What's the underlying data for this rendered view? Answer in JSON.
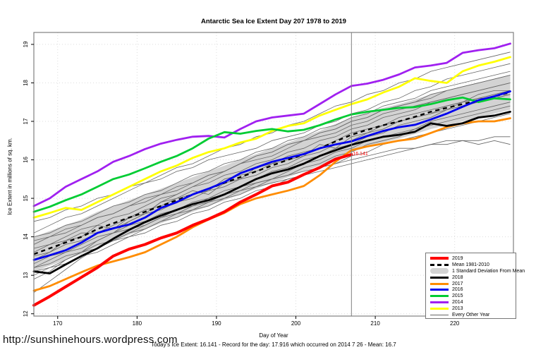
{
  "footer": {
    "url": "http://sunshinehours.wordpress.com",
    "stats": "Today's Ice Extent: 16.141  - Record for the day: 17.916 which occurred on 2014 7 26  - Mean: 16.7"
  },
  "legend": [
    {
      "label": "2019",
      "color": "#ff0000",
      "style": "thick"
    },
    {
      "label": "Mean 1981-2010",
      "color": "#000000",
      "style": "dashed"
    },
    {
      "label": "1 Standard Deviation From Mean",
      "color": "#d3d3d3",
      "style": "band"
    },
    {
      "label": "2018",
      "color": "#000000",
      "style": "medium"
    },
    {
      "label": "2017",
      "color": "#ff8c00",
      "style": "medium"
    },
    {
      "label": "2016",
      "color": "#0000ee",
      "style": "medium"
    },
    {
      "label": "2015",
      "color": "#00cc33",
      "style": "medium"
    },
    {
      "label": "2014",
      "color": "#a020f0",
      "style": "medium"
    },
    {
      "label": "2013",
      "color": "#ffff00",
      "style": "medium"
    },
    {
      "label": "Every Other Year",
      "color": "#666666",
      "style": "thin"
    }
  ],
  "chart_data": {
    "type": "line",
    "title": "Antarctic Sea Ice Extent Day 207 1978 to 2019",
    "xlabel": "Day of Year",
    "ylabel": "Ice Extent in millions of sq. km.",
    "xlim": [
      167,
      227.4
    ],
    "ylim": [
      11.94,
      19.31
    ],
    "x_ticks": [
      170,
      180,
      190,
      200,
      210,
      220
    ],
    "y_ticks": [
      12,
      13,
      14,
      15,
      16,
      17,
      18,
      19
    ],
    "grid": "dotted",
    "vline": {
      "x": 207,
      "color": "#808080"
    },
    "annotation": {
      "text": "16.141",
      "x": 207,
      "y": 16.141,
      "color": "#ff0000"
    },
    "x": [
      167,
      169,
      171,
      173,
      175,
      177,
      179,
      181,
      183,
      185,
      187,
      189,
      191,
      193,
      195,
      197,
      199,
      201,
      203,
      205,
      207,
      209,
      211,
      213,
      215,
      217,
      219,
      221,
      223,
      225,
      227
    ],
    "band": {
      "name": "1 Standard Deviation From Mean",
      "color": "#d3d3d3",
      "upper": [
        14.0,
        14.15,
        14.3,
        14.45,
        14.65,
        14.8,
        14.95,
        15.1,
        15.25,
        15.4,
        15.55,
        15.7,
        15.85,
        16.0,
        16.15,
        16.3,
        16.45,
        16.6,
        16.75,
        16.93,
        17.1,
        17.23,
        17.35,
        17.45,
        17.57,
        17.7,
        17.8,
        17.9,
        18.0,
        18.1,
        18.2
      ],
      "lower": [
        13.1,
        13.25,
        13.4,
        13.55,
        13.75,
        13.9,
        14.05,
        14.2,
        14.35,
        14.5,
        14.65,
        14.8,
        14.95,
        15.1,
        15.25,
        15.4,
        15.55,
        15.7,
        15.85,
        16.03,
        16.2,
        16.33,
        16.45,
        16.55,
        16.67,
        16.8,
        16.9,
        17.0,
        17.1,
        17.2,
        17.3
      ]
    },
    "mean": {
      "name": "Mean 1981-2010",
      "color": "#000000",
      "dashed": true,
      "values": [
        13.55,
        13.7,
        13.85,
        14.0,
        14.2,
        14.35,
        14.5,
        14.65,
        14.8,
        14.95,
        15.1,
        15.25,
        15.4,
        15.55,
        15.7,
        15.85,
        16.0,
        16.15,
        16.3,
        16.48,
        16.65,
        16.78,
        16.9,
        17.0,
        17.12,
        17.25,
        17.35,
        17.45,
        17.55,
        17.65,
        17.75
      ]
    },
    "series": [
      {
        "name": "2013",
        "color": "#ffff00",
        "width": 2.8,
        "values": [
          14.5,
          14.62,
          14.75,
          14.7,
          14.9,
          15.1,
          15.3,
          15.5,
          15.7,
          15.85,
          16.05,
          16.2,
          16.3,
          16.45,
          16.55,
          16.75,
          16.88,
          16.95,
          17.15,
          17.3,
          17.45,
          17.57,
          17.75,
          17.9,
          18.12,
          18.05,
          18.0,
          18.3,
          18.45,
          18.55,
          18.67
        ]
      },
      {
        "name": "2014",
        "color": "#a020f0",
        "width": 2.8,
        "values": [
          14.8,
          15.0,
          15.3,
          15.5,
          15.7,
          15.95,
          16.1,
          16.28,
          16.42,
          16.52,
          16.6,
          16.62,
          16.58,
          16.8,
          17.0,
          17.1,
          17.15,
          17.2,
          17.45,
          17.7,
          17.92,
          17.98,
          18.08,
          18.22,
          18.4,
          18.45,
          18.52,
          18.78,
          18.85,
          18.9,
          19.02
        ]
      },
      {
        "name": "2015",
        "color": "#00cc33",
        "width": 2.8,
        "values": [
          14.65,
          14.78,
          14.95,
          15.1,
          15.3,
          15.5,
          15.62,
          15.78,
          15.95,
          16.1,
          16.3,
          16.55,
          16.72,
          16.68,
          16.75,
          16.8,
          16.74,
          16.78,
          16.9,
          17.05,
          17.18,
          17.25,
          17.3,
          17.35,
          17.37,
          17.45,
          17.55,
          17.62,
          17.5,
          17.6,
          17.57
        ]
      },
      {
        "name": "2016",
        "color": "#0000ee",
        "width": 2.8,
        "values": [
          13.4,
          13.52,
          13.65,
          13.85,
          14.1,
          14.22,
          14.32,
          14.5,
          14.75,
          14.9,
          15.1,
          15.25,
          15.42,
          15.65,
          15.8,
          15.95,
          16.05,
          16.15,
          16.3,
          16.4,
          16.48,
          16.62,
          16.75,
          16.85,
          16.91,
          17.05,
          17.2,
          17.38,
          17.55,
          17.65,
          17.78
        ]
      },
      {
        "name": "2017",
        "color": "#ff8c00",
        "width": 2.8,
        "values": [
          12.6,
          12.72,
          12.9,
          13.08,
          13.25,
          13.36,
          13.47,
          13.6,
          13.8,
          14.0,
          14.25,
          14.45,
          14.62,
          14.85,
          15.0,
          15.1,
          15.2,
          15.32,
          15.6,
          15.95,
          16.25,
          16.35,
          16.42,
          16.5,
          16.55,
          16.7,
          16.85,
          16.95,
          17.0,
          17.0,
          17.08
        ]
      },
      {
        "name": "2018",
        "color": "#000000",
        "width": 2.8,
        "values": [
          13.1,
          13.05,
          13.28,
          13.5,
          13.7,
          13.95,
          14.18,
          14.38,
          14.55,
          14.7,
          14.85,
          14.95,
          15.1,
          15.3,
          15.5,
          15.65,
          15.75,
          15.9,
          16.1,
          16.25,
          16.39,
          16.5,
          16.6,
          16.65,
          16.73,
          16.95,
          16.88,
          16.95,
          17.1,
          17.15,
          17.25
        ]
      },
      {
        "name": "2019",
        "color": "#ff0000",
        "width": 4,
        "values": [
          12.22,
          12.45,
          12.7,
          12.95,
          13.2,
          13.5,
          13.68,
          13.8,
          13.97,
          14.1,
          14.3,
          14.46,
          14.65,
          14.9,
          15.1,
          15.32,
          15.42,
          15.62,
          15.8,
          16.02,
          16.141
        ]
      }
    ],
    "other_years": {
      "name": "Every Other Year",
      "color": "#666666",
      "width": 0.8,
      "lines": [
        [
          13.9,
          14.0,
          14.2,
          14.3,
          14.5,
          14.6,
          14.8,
          15.0,
          15.1,
          15.2,
          15.4,
          15.6,
          15.7,
          15.9,
          16.0,
          16.1,
          16.3,
          16.5,
          16.6,
          16.7,
          16.9,
          17.0,
          17.2,
          17.3,
          17.4,
          17.5,
          17.6,
          17.7,
          17.8,
          17.9,
          18.0
        ],
        [
          13.2,
          13.4,
          13.6,
          13.7,
          13.9,
          14.1,
          14.2,
          14.3,
          14.5,
          14.7,
          14.8,
          14.9,
          15.1,
          15.2,
          15.4,
          15.5,
          15.7,
          15.9,
          16.0,
          16.2,
          16.3,
          16.5,
          16.6,
          16.7,
          16.8,
          17.0,
          17.1,
          17.2,
          17.3,
          17.4,
          17.5
        ],
        [
          12.9,
          13.1,
          13.4,
          13.6,
          13.9,
          14.1,
          14.4,
          14.6,
          14.9,
          15.1,
          15.3,
          15.5,
          15.7,
          15.9,
          16.1,
          16.2,
          16.4,
          16.5,
          16.7,
          16.8,
          17.0,
          17.1,
          17.3,
          17.4,
          17.5,
          17.6,
          17.8,
          17.9,
          18.0,
          18.1,
          18.2
        ],
        [
          14.4,
          14.5,
          14.7,
          14.8,
          15.0,
          15.1,
          15.3,
          15.4,
          15.5,
          15.7,
          15.8,
          16.0,
          16.1,
          16.2,
          16.3,
          16.5,
          16.6,
          16.7,
          16.9,
          17.0,
          17.2,
          17.3,
          17.5,
          17.6,
          17.8,
          17.9,
          18.1,
          18.2,
          18.3,
          18.4,
          18.5
        ],
        [
          13.6,
          13.8,
          13.9,
          14.1,
          14.1,
          14.3,
          14.5,
          14.7,
          14.8,
          15.0,
          15.1,
          15.2,
          15.5,
          15.6,
          15.7,
          15.9,
          16.1,
          16.2,
          16.3,
          16.5,
          16.7,
          16.8,
          16.9,
          17.1,
          17.2,
          17.3,
          17.4,
          17.5,
          17.7,
          17.8,
          17.8
        ],
        [
          13.3,
          13.5,
          13.6,
          13.8,
          14.0,
          14.1,
          14.3,
          14.4,
          14.6,
          14.7,
          14.9,
          15.0,
          15.1,
          15.3,
          15.4,
          15.5,
          15.6,
          15.7,
          15.8,
          15.9,
          16.0,
          16.1,
          16.2,
          16.3,
          16.3,
          16.4,
          16.4,
          16.5,
          16.5,
          16.6,
          16.6
        ],
        [
          14.1,
          14.3,
          14.5,
          14.6,
          14.8,
          15.0,
          15.2,
          15.4,
          15.6,
          15.8,
          15.9,
          16.1,
          16.3,
          16.4,
          16.6,
          16.7,
          16.9,
          17.0,
          17.2,
          17.4,
          17.5,
          17.7,
          17.8,
          18.0,
          18.1,
          18.3,
          18.4,
          18.5,
          18.6,
          18.7,
          18.8
        ],
        [
          13.5,
          13.6,
          13.9,
          14.0,
          14.3,
          14.2,
          14.5,
          14.6,
          14.9,
          15.0,
          15.2,
          15.1,
          15.4,
          15.5,
          15.8,
          15.9,
          16.0,
          16.1,
          16.4,
          16.3,
          16.6,
          16.7,
          16.9,
          17.0,
          17.1,
          17.2,
          17.3,
          17.5,
          17.6,
          17.6,
          17.7
        ],
        [
          13.1,
          13.2,
          13.4,
          13.6,
          13.7,
          13.9,
          14.0,
          14.2,
          14.4,
          14.5,
          14.7,
          14.9,
          15.0,
          15.2,
          15.3,
          15.5,
          15.6,
          15.8,
          15.9,
          16.1,
          16.2,
          16.4,
          16.5,
          16.6,
          16.8,
          16.9,
          17.0,
          17.1,
          17.2,
          17.3,
          17.4
        ],
        [
          13.8,
          14.0,
          14.1,
          14.3,
          14.5,
          14.6,
          14.8,
          14.9,
          15.1,
          15.3,
          15.4,
          15.6,
          15.7,
          15.9,
          16.1,
          16.2,
          16.4,
          16.5,
          16.7,
          16.8,
          17.0,
          17.1,
          17.3,
          17.4,
          17.5,
          17.7,
          17.8,
          17.9,
          18.0,
          18.1,
          18.2
        ],
        [
          13.4,
          13.6,
          13.8,
          13.9,
          14.1,
          14.2,
          14.4,
          14.6,
          14.7,
          14.9,
          15.0,
          15.2,
          15.3,
          15.5,
          15.6,
          15.8,
          15.9,
          16.1,
          16.2,
          16.4,
          16.5,
          16.7,
          16.8,
          17.0,
          17.1,
          17.2,
          17.4,
          17.5,
          17.6,
          17.7,
          17.8
        ],
        [
          12.55,
          12.85,
          13.15,
          13.45,
          13.7,
          13.9,
          14.1,
          14.3,
          14.5,
          14.6,
          14.8,
          15.0,
          15.2,
          15.3,
          15.5,
          15.7,
          15.8,
          16.0,
          16.1,
          16.3,
          16.4,
          16.6,
          16.7,
          16.9,
          17.0,
          17.1,
          17.3,
          17.4,
          17.5,
          17.6,
          17.7
        ],
        [
          13.0,
          13.2,
          13.3,
          13.5,
          13.6,
          13.8,
          14.0,
          14.1,
          14.3,
          14.4,
          14.6,
          14.7,
          14.9,
          15.0,
          15.2,
          15.3,
          15.5,
          15.6,
          15.8,
          15.9,
          16.1,
          16.2,
          16.4,
          16.5,
          16.6,
          16.7,
          16.8,
          16.9,
          17.0,
          17.1,
          17.2
        ],
        [
          14.0,
          14.1,
          14.3,
          14.4,
          14.6,
          14.8,
          14.9,
          15.1,
          15.2,
          15.4,
          15.6,
          15.7,
          15.9,
          16.0,
          16.2,
          16.3,
          16.5,
          16.6,
          16.8,
          16.9,
          17.1,
          17.2,
          17.4,
          17.5,
          17.6,
          17.8,
          17.9,
          18.0,
          18.1,
          18.2,
          18.3
        ],
        [
          13.7,
          13.8,
          14.0,
          14.2,
          14.3,
          14.5,
          14.6,
          14.8,
          15.0,
          15.1,
          15.3,
          15.4,
          15.6,
          15.7,
          15.9,
          16.0,
          16.2,
          16.3,
          16.5,
          16.6,
          16.8,
          16.9,
          17.1,
          17.2,
          17.3,
          17.5,
          17.6,
          17.7,
          17.8,
          17.9,
          18.0
        ],
        [
          13.2,
          13.3,
          13.5,
          13.6,
          13.8,
          13.9,
          14.1,
          14.2,
          14.4,
          14.6,
          14.7,
          14.8,
          15.0,
          15.1,
          15.3,
          15.4,
          15.5,
          15.6,
          15.7,
          15.8,
          15.9,
          16.0,
          16.1,
          16.2,
          16.3,
          16.4,
          16.5,
          16.5,
          16.4,
          16.5,
          16.4
        ]
      ]
    }
  }
}
